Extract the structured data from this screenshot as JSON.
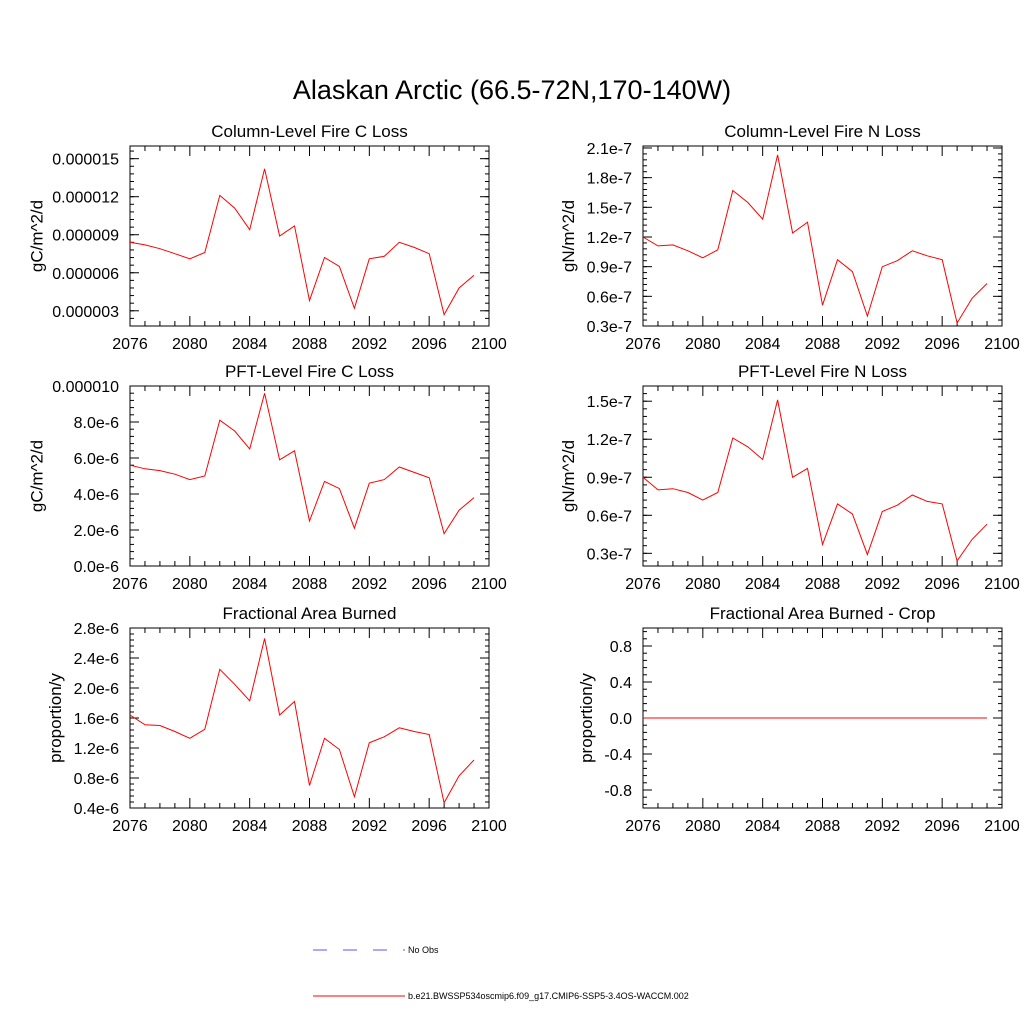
{
  "title": "Alaskan Arctic (66.5-72N,170-140W)",
  "colors": {
    "model": "#ff0000",
    "obs": "#5555ff",
    "axes": "#000000"
  },
  "legend": {
    "obs_label": "No Obs",
    "model_label": "b.e21.BWSSP534oscmip6.f09_g17.CMIP6-SSP5-3.4OS-WACCM.002"
  },
  "chart_data": [
    {
      "type": "line",
      "title": "Column-Level Fire C Loss",
      "ylabel": "gC/m^2/d",
      "xlim": [
        2076,
        2100
      ],
      "ylim": [
        1.8e-06,
        1.6e-05
      ],
      "xticks": [
        2076,
        2080,
        2084,
        2088,
        2092,
        2096,
        2100
      ],
      "xtick_labels": [
        "2076",
        "2080",
        "2084",
        "2088",
        "2092",
        "2096",
        "2100"
      ],
      "yticks": [
        3e-06,
        6e-06,
        9e-06,
        1.2e-05,
        1.5e-05
      ],
      "ytick_labels": [
        "0.000003",
        "0.000006",
        "0.000009",
        "0.000012",
        "0.000015"
      ],
      "x": [
        2076,
        2077,
        2078,
        2079,
        2080,
        2081,
        2082,
        2083,
        2084,
        2085,
        2086,
        2087,
        2088,
        2089,
        2090,
        2091,
        2092,
        2093,
        2094,
        2095,
        2096,
        2097,
        2098,
        2099
      ],
      "series": [
        {
          "name": "b.e21.BWSSP534oscmip6.f09_g17.CMIP6-SSP5-3.4OS-WACCM.002",
          "values": [
            8.4e-06,
            8.2e-06,
            7.9e-06,
            7.5e-06,
            7.1e-06,
            7.6e-06,
            1.21e-05,
            1.11e-05,
            9.4e-06,
            1.42e-05,
            8.9e-06,
            9.7e-06,
            3.8e-06,
            7.2e-06,
            6.5e-06,
            3.2e-06,
            7.1e-06,
            7.3e-06,
            8.4e-06,
            8e-06,
            7.5e-06,
            2.7e-06,
            4.8e-06,
            5.8e-06
          ]
        }
      ]
    },
    {
      "type": "line",
      "title": "Column-Level Fire N Loss",
      "ylabel": "gN/m^2/d",
      "xlim": [
        2076,
        2100
      ],
      "ylim": [
        3e-08,
        2.12e-07
      ],
      "xticks": [
        2076,
        2080,
        2084,
        2088,
        2092,
        2096,
        2100
      ],
      "xtick_labels": [
        "2076",
        "2080",
        "2084",
        "2088",
        "2092",
        "2096",
        "2100"
      ],
      "yticks": [
        3e-08,
        6e-08,
        9e-08,
        1.2e-07,
        1.5e-07,
        1.8e-07,
        2.1e-07
      ],
      "ytick_labels": [
        "0.3e-7",
        "0.6e-7",
        "0.9e-7",
        "1.2e-7",
        "1.5e-7",
        "1.8e-7",
        "2.1e-7"
      ],
      "x": [
        2076,
        2077,
        2078,
        2079,
        2080,
        2081,
        2082,
        2083,
        2084,
        2085,
        2086,
        2087,
        2088,
        2089,
        2090,
        2091,
        2092,
        2093,
        2094,
        2095,
        2096,
        2097,
        2098,
        2099
      ],
      "series": [
        {
          "name": "b.e21.BWSSP534oscmip6.f09_g17.CMIP6-SSP5-3.4OS-WACCM.002",
          "values": [
            1.2e-07,
            1.11e-07,
            1.12e-07,
            1.06e-07,
            9.9e-08,
            1.07e-07,
            1.67e-07,
            1.55e-07,
            1.38e-07,
            2.03e-07,
            1.24e-07,
            1.35e-07,
            5.1e-08,
            9.7e-08,
            8.5e-08,
            4e-08,
            9e-08,
            9.6e-08,
            1.06e-07,
            1.01e-07,
            9.7e-08,
            3.3e-08,
            5.8e-08,
            7.3e-08
          ]
        }
      ]
    },
    {
      "type": "line",
      "title": "PFT-Level Fire C Loss",
      "ylabel": "gC/m^2/d",
      "xlim": [
        2076,
        2100
      ],
      "ylim": [
        0,
        1e-05
      ],
      "xticks": [
        2076,
        2080,
        2084,
        2088,
        2092,
        2096,
        2100
      ],
      "xtick_labels": [
        "2076",
        "2080",
        "2084",
        "2088",
        "2092",
        "2096",
        "2100"
      ],
      "yticks": [
        0,
        2e-06,
        4e-06,
        6e-06,
        8e-06,
        1e-05
      ],
      "ytick_labels": [
        "0.0e-6",
        "2.0e-6",
        "4.0e-6",
        "6.0e-6",
        "8.0e-6",
        "0.000010"
      ],
      "x": [
        2076,
        2077,
        2078,
        2079,
        2080,
        2081,
        2082,
        2083,
        2084,
        2085,
        2086,
        2087,
        2088,
        2089,
        2090,
        2091,
        2092,
        2093,
        2094,
        2095,
        2096,
        2097,
        2098,
        2099
      ],
      "series": [
        {
          "name": "b.e21.BWSSP534oscmip6.f09_g17.CMIP6-SSP5-3.4OS-WACCM.002",
          "values": [
            5.6e-06,
            5.4e-06,
            5.3e-06,
            5.1e-06,
            4.8e-06,
            5e-06,
            8.1e-06,
            7.5e-06,
            6.5e-06,
            9.6e-06,
            5.9e-06,
            6.4e-06,
            2.5e-06,
            4.7e-06,
            4.3e-06,
            2.1e-06,
            4.6e-06,
            4.8e-06,
            5.5e-06,
            5.2e-06,
            4.9e-06,
            1.8e-06,
            3.1e-06,
            3.8e-06
          ]
        }
      ]
    },
    {
      "type": "line",
      "title": "PFT-Level Fire N Loss",
      "ylabel": "gN/m^2/d",
      "xlim": [
        2076,
        2100
      ],
      "ylim": [
        2e-08,
        1.62e-07
      ],
      "xticks": [
        2076,
        2080,
        2084,
        2088,
        2092,
        2096,
        2100
      ],
      "xtick_labels": [
        "2076",
        "2080",
        "2084",
        "2088",
        "2092",
        "2096",
        "2100"
      ],
      "yticks": [
        3e-08,
        6e-08,
        9e-08,
        1.2e-07,
        1.5e-07
      ],
      "ytick_labels": [
        "0.3e-7",
        "0.6e-7",
        "0.9e-7",
        "1.2e-7",
        "1.5e-7"
      ],
      "x": [
        2076,
        2077,
        2078,
        2079,
        2080,
        2081,
        2082,
        2083,
        2084,
        2085,
        2086,
        2087,
        2088,
        2089,
        2090,
        2091,
        2092,
        2093,
        2094,
        2095,
        2096,
        2097,
        2098,
        2099
      ],
      "series": [
        {
          "name": "b.e21.BWSSP534oscmip6.f09_g17.CMIP6-SSP5-3.4OS-WACCM.002",
          "values": [
            9e-08,
            8e-08,
            8.1e-08,
            7.8e-08,
            7.2e-08,
            7.8e-08,
            1.21e-07,
            1.14e-07,
            1.04e-07,
            1.51e-07,
            9e-08,
            9.7e-08,
            3.7e-08,
            6.9e-08,
            6.1e-08,
            2.9e-08,
            6.3e-08,
            6.8e-08,
            7.6e-08,
            7.1e-08,
            6.9e-08,
            2.4e-08,
            4.1e-08,
            5.3e-08
          ]
        }
      ]
    },
    {
      "type": "line",
      "title": "Fractional Area Burned",
      "ylabel": "proportion/y",
      "xlim": [
        2076,
        2100
      ],
      "ylim": [
        4e-07,
        2.8e-06
      ],
      "xticks": [
        2076,
        2080,
        2084,
        2088,
        2092,
        2096,
        2100
      ],
      "xtick_labels": [
        "2076",
        "2080",
        "2084",
        "2088",
        "2092",
        "2096",
        "2100"
      ],
      "yticks": [
        4e-07,
        8e-07,
        1.2e-06,
        1.6e-06,
        2e-06,
        2.4e-06,
        2.8e-06
      ],
      "ytick_labels": [
        "0.4e-6",
        "0.8e-6",
        "1.2e-6",
        "1.6e-6",
        "2.0e-6",
        "2.4e-6",
        "2.8e-6"
      ],
      "x": [
        2076,
        2077,
        2078,
        2079,
        2080,
        2081,
        2082,
        2083,
        2084,
        2085,
        2086,
        2087,
        2088,
        2089,
        2090,
        2091,
        2092,
        2093,
        2094,
        2095,
        2096,
        2097,
        2098,
        2099
      ],
      "series": [
        {
          "name": "b.e21.BWSSP534oscmip6.f09_g17.CMIP6-SSP5-3.4OS-WACCM.002",
          "values": [
            1.64e-06,
            1.51e-06,
            1.5e-06,
            1.42e-06,
            1.33e-06,
            1.45e-06,
            2.25e-06,
            2.05e-06,
            1.83e-06,
            2.66e-06,
            1.64e-06,
            1.82e-06,
            7e-07,
            1.33e-06,
            1.18e-06,
            5.5e-07,
            1.27e-06,
            1.35e-06,
            1.47e-06,
            1.42e-06,
            1.38e-06,
            4.7e-07,
            8.3e-07,
            1.04e-06
          ]
        }
      ]
    },
    {
      "type": "line",
      "title": "Fractional Area Burned - Crop",
      "ylabel": "proportion/y",
      "xlim": [
        2076,
        2100
      ],
      "ylim": [
        -1,
        1
      ],
      "xticks": [
        2076,
        2080,
        2084,
        2088,
        2092,
        2096,
        2100
      ],
      "xtick_labels": [
        "2076",
        "2080",
        "2084",
        "2088",
        "2092",
        "2096",
        "2100"
      ],
      "yticks": [
        -0.8,
        -0.4,
        0,
        0.4,
        0.8
      ],
      "ytick_labels": [
        "-0.8",
        "-0.4",
        "0.0",
        "0.4",
        "0.8"
      ],
      "x": [
        2076,
        2077,
        2078,
        2079,
        2080,
        2081,
        2082,
        2083,
        2084,
        2085,
        2086,
        2087,
        2088,
        2089,
        2090,
        2091,
        2092,
        2093,
        2094,
        2095,
        2096,
        2097,
        2098,
        2099
      ],
      "series": [
        {
          "name": "b.e21.BWSSP534oscmip6.f09_g17.CMIP6-SSP5-3.4OS-WACCM.002",
          "values": [
            0,
            0,
            0,
            0,
            0,
            0,
            0,
            0,
            0,
            0,
            0,
            0,
            0,
            0,
            0,
            0,
            0,
            0,
            0,
            0,
            0,
            0,
            0,
            0
          ]
        }
      ]
    }
  ]
}
